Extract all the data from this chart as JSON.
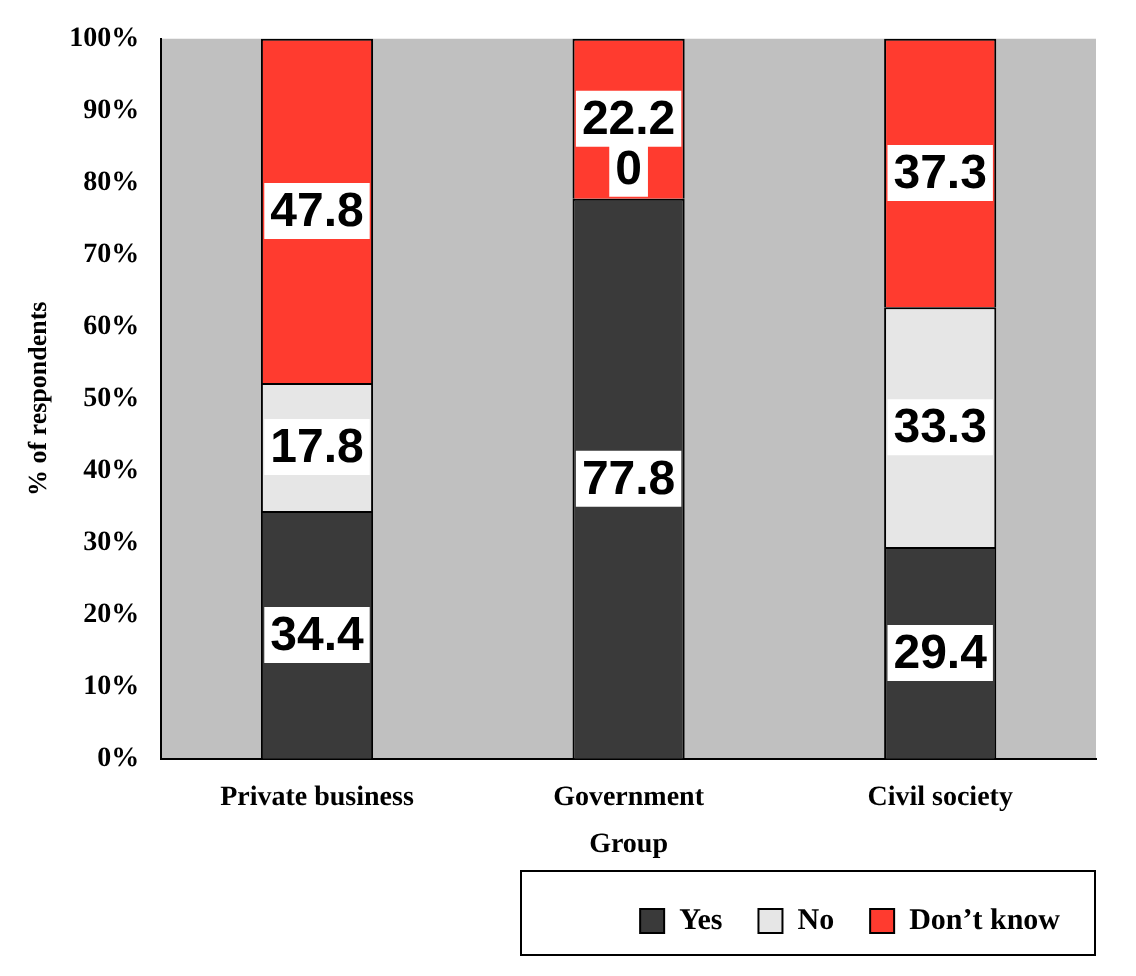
{
  "chart_data": {
    "type": "bar",
    "stacked": true,
    "categories": [
      "Private business",
      "Government",
      "Civil society"
    ],
    "series": [
      {
        "name": "Yes",
        "color": "#3a3a3a",
        "values": [
          34.4,
          77.8,
          29.4
        ]
      },
      {
        "name": "No",
        "color": "#e6e6e6",
        "values": [
          17.8,
          0,
          33.3
        ]
      },
      {
        "name": "Don’t know",
        "color": "#ff3b2f",
        "values": [
          47.8,
          22.2,
          37.3
        ]
      }
    ],
    "data_labels": true,
    "xlabel": "Group",
    "ylabel": "% of respondents",
    "legend": "bottom",
    "ylim": [
      0,
      100
    ],
    "yticks": [
      {
        "value": 0,
        "label": "0%"
      },
      {
        "value": 10,
        "label": "10%"
      },
      {
        "value": 20,
        "label": "20%"
      },
      {
        "value": 30,
        "label": "30%"
      },
      {
        "value": 40,
        "label": "40%"
      },
      {
        "value": 50,
        "label": "50%"
      },
      {
        "value": 60,
        "label": "60%"
      },
      {
        "value": 70,
        "label": "70%"
      },
      {
        "value": 80,
        "label": "80%"
      },
      {
        "value": 90,
        "label": "90%"
      },
      {
        "value": 100,
        "label": "100%"
      }
    ]
  }
}
